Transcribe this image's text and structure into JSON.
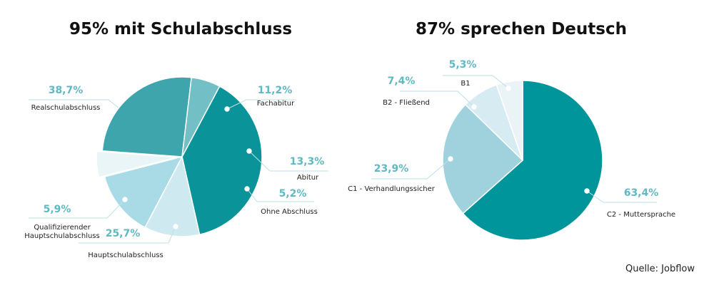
{
  "source_label": "Quelle: Jobflow",
  "chart_data": [
    {
      "type": "pie",
      "title": "95% mit Schulabschluss",
      "slices": [
        {
          "label": "Realschulabschluss",
          "value": 38.7,
          "display": "38,7%",
          "color": "#0a9499"
        },
        {
          "label": "Fachabitur",
          "value": 11.2,
          "display": "11,2%",
          "color": "#cfe9f1"
        },
        {
          "label": "Abitur",
          "value": 13.3,
          "display": "13,3%",
          "color": "#a8dbe5"
        },
        {
          "label": "Ohne Abschluss",
          "value": 5.2,
          "display": "5,2%",
          "color": "#eaf5f7"
        },
        {
          "label": "Hauptschulabschluss",
          "value": 25.7,
          "display": "25,7%",
          "color": "#3ea5ad"
        },
        {
          "label": [
            "Qualifizierender",
            "Hauptschulabschluss"
          ],
          "value": 5.9,
          "display": "5,9%",
          "color": "#72bfc6"
        }
      ]
    },
    {
      "type": "pie",
      "title": "87% sprechen Deutsch",
      "slices": [
        {
          "label": "C2 - Muttersprache",
          "value": 63.4,
          "display": "63,4%",
          "color": "#00959b"
        },
        {
          "label": "C1 - Verhandlungssicher",
          "value": 23.9,
          "display": "23,9%",
          "color": "#9fd2dc"
        },
        {
          "label": "B2 - Fließend",
          "value": 7.4,
          "display": "7,4%",
          "color": "#d6ecf2"
        },
        {
          "label": "B1",
          "value": 5.3,
          "display": "5,3%",
          "color": "#eaf3f6"
        }
      ]
    }
  ]
}
